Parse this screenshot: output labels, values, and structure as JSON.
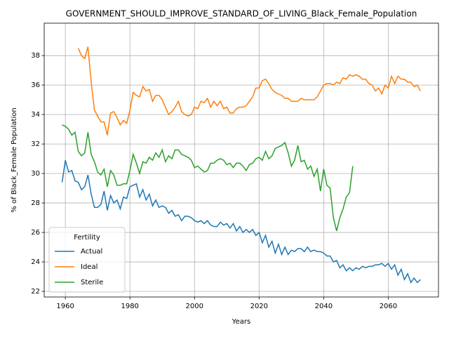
{
  "chart_data": {
    "type": "line",
    "title": "GOVERNMENT_SHOULD_IMPROVE_STANDARD_OF_LIVING_Black_Female_Population",
    "xlabel": "Years",
    "ylabel": "% of Black_Female Population",
    "legend_title": "Fertility",
    "legend": "lower left",
    "grid": true,
    "x": [
      1959,
      1960,
      1961,
      1962,
      1963,
      1964,
      1965,
      1966,
      1967,
      1968,
      1969,
      1970,
      1971,
      1972,
      1973,
      1974,
      1975,
      1976,
      1977,
      1978,
      1979,
      1980,
      1981,
      1982,
      1983,
      1984,
      1985,
      1986,
      1987,
      1988,
      1989,
      1990,
      1991,
      1992,
      1993,
      1994,
      1995,
      1996,
      1997,
      1998,
      1999,
      2000,
      2001,
      2002,
      2003,
      2004,
      2005,
      2006,
      2007,
      2008,
      2009,
      2010,
      2011,
      2012,
      2013,
      2014,
      2015,
      2016,
      2017,
      2018,
      2019,
      2020,
      2021,
      2022,
      2023,
      2024,
      2025,
      2026,
      2027,
      2028,
      2029,
      2030,
      2031,
      2032,
      2033,
      2034,
      2035,
      2036,
      2037,
      2038,
      2039,
      2040,
      2041,
      2042,
      2043,
      2044,
      2045,
      2046,
      2047,
      2048,
      2049,
      2050,
      2051,
      2052,
      2053,
      2054,
      2055,
      2056,
      2057,
      2058,
      2059,
      2060,
      2061,
      2062,
      2063,
      2064,
      2065,
      2066,
      2067,
      2068,
      2069,
      2070
    ],
    "series": [
      {
        "name": "Actual",
        "color": "#1f77b4",
        "values": [
          29.4,
          30.9,
          30.1,
          30.2,
          29.5,
          29.4,
          28.9,
          29.1,
          29.9,
          28.6,
          27.7,
          27.7,
          27.9,
          28.8,
          27.5,
          28.5,
          28.0,
          28.2,
          27.6,
          28.4,
          28.3,
          29.1,
          29.2,
          29.3,
          28.4,
          28.9,
          28.2,
          28.6,
          27.8,
          28.2,
          27.7,
          27.8,
          27.7,
          27.3,
          27.5,
          27.1,
          27.2,
          26.8,
          27.1,
          27.1,
          27.0,
          26.8,
          26.7,
          26.8,
          26.6,
          26.8,
          26.5,
          26.4,
          26.4,
          26.7,
          26.5,
          26.6,
          26.3,
          26.6,
          26.1,
          26.4,
          26.0,
          26.2,
          26.0,
          26.2,
          25.8,
          26.0,
          25.3,
          25.8,
          25.0,
          25.4,
          24.6,
          25.2,
          24.5,
          25.0,
          24.5,
          24.8,
          24.7,
          24.9,
          24.9,
          24.7,
          25.0,
          24.7,
          24.8,
          24.7,
          24.7,
          24.6,
          24.4,
          24.4,
          24.0,
          24.1,
          23.6,
          23.8,
          23.4,
          23.6,
          23.4,
          23.6,
          23.5,
          23.7,
          23.6,
          23.7,
          23.7,
          23.8,
          23.8,
          23.9,
          23.7,
          23.9,
          23.5,
          23.8,
          23.1,
          23.5,
          22.8,
          23.2,
          22.6,
          22.9,
          22.6,
          22.8
        ]
      },
      {
        "name": "Ideal",
        "color": "#ff7f0e",
        "values": [
          null,
          null,
          null,
          null,
          null,
          38.5,
          38.0,
          37.8,
          38.6,
          36.2,
          34.3,
          33.9,
          33.5,
          33.5,
          32.6,
          34.1,
          34.2,
          33.8,
          33.3,
          33.6,
          33.4,
          34.3,
          35.5,
          35.3,
          35.2,
          35.9,
          35.6,
          35.7,
          34.9,
          35.3,
          35.3,
          35.0,
          34.5,
          34.0,
          34.2,
          34.5,
          34.9,
          34.2,
          34.0,
          33.9,
          34.0,
          34.5,
          34.4,
          34.9,
          34.8,
          35.1,
          34.5,
          34.9,
          34.6,
          34.9,
          34.4,
          34.5,
          34.1,
          34.1,
          34.4,
          34.5,
          34.5,
          34.6,
          34.9,
          35.2,
          35.8,
          35.8,
          36.3,
          36.4,
          36.1,
          35.7,
          35.5,
          35.4,
          35.3,
          35.1,
          35.1,
          34.9,
          34.9,
          34.9,
          35.1,
          35.0,
          35.0,
          35.0,
          35.0,
          35.2,
          35.6,
          36.0,
          36.1,
          36.1,
          36.0,
          36.2,
          36.1,
          36.5,
          36.4,
          36.7,
          36.6,
          36.7,
          36.6,
          36.4,
          36.4,
          36.1,
          36.0,
          35.6,
          35.8,
          35.4,
          36.0,
          35.8,
          36.6,
          36.1,
          36.6,
          36.4,
          36.4,
          36.2,
          36.2,
          35.9,
          36.0,
          35.6
        ]
      },
      {
        "name": "Sterile",
        "color": "#2ca02c",
        "values": [
          33.3,
          33.2,
          33.0,
          32.6,
          32.8,
          31.5,
          31.2,
          31.4,
          32.8,
          31.3,
          30.8,
          30.1,
          29.9,
          30.3,
          29.1,
          30.2,
          29.9,
          29.2,
          29.2,
          29.3,
          29.3,
          30.2,
          31.3,
          30.7,
          30.0,
          30.8,
          30.7,
          31.1,
          30.9,
          31.4,
          31.1,
          31.6,
          30.8,
          31.2,
          31.0,
          31.6,
          31.6,
          31.3,
          31.2,
          31.1,
          30.9,
          30.4,
          30.5,
          30.3,
          30.1,
          30.2,
          30.7,
          30.7,
          30.9,
          31.0,
          30.9,
          30.6,
          30.7,
          30.4,
          30.7,
          30.7,
          30.5,
          30.2,
          30.6,
          30.7,
          31.0,
          31.1,
          30.9,
          31.5,
          31.0,
          31.2,
          31.7,
          31.8,
          31.9,
          32.1,
          31.4,
          30.5,
          30.9,
          31.9,
          30.8,
          30.9,
          30.3,
          30.5,
          29.8,
          30.3,
          28.8,
          30.3,
          29.2,
          29.0,
          27.0,
          26.1,
          27.0,
          27.6,
          28.4,
          28.7,
          30.5,
          null,
          null,
          null,
          null,
          null,
          null,
          null,
          null,
          null,
          null,
          null,
          null,
          null,
          null,
          null,
          null,
          null,
          null,
          null,
          null,
          null
        ]
      }
    ],
    "xlim": [
      1953.45,
      2075.55
    ],
    "xticks": [
      1960,
      1980,
      2000,
      2020,
      2040,
      2060
    ],
    "ylim": [
      21.62,
      40.2
    ],
    "yticks": [
      22,
      24,
      26,
      28,
      30,
      32,
      34,
      36,
      38
    ]
  }
}
